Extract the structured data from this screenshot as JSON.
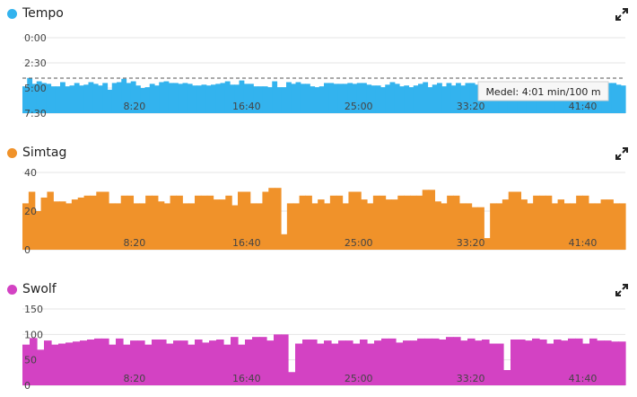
{
  "chart_data": [
    {
      "type": "bar",
      "title": "Tempo",
      "color": "#33b3ee",
      "inverted_y": true,
      "ylim": [
        0,
        450
      ],
      "yticks": [
        "0:00",
        "2:30",
        "5:00",
        "7:30"
      ],
      "ytick_values": [
        0,
        150,
        300,
        450
      ],
      "xticks": [
        "8:20",
        "16:40",
        "25:00",
        "33:20",
        "41:40"
      ],
      "xtick_values": [
        500,
        1000,
        1500,
        2000,
        2500
      ],
      "xlim": [
        0,
        2690
      ],
      "average_value": 241,
      "tooltip": "Medel: 4:01 min/100 m",
      "values": [
        290,
        240,
        275,
        260,
        270,
        275,
        290,
        290,
        265,
        290,
        285,
        270,
        285,
        280,
        265,
        275,
        285,
        270,
        310,
        270,
        265,
        245,
        270,
        260,
        285,
        300,
        295,
        275,
        285,
        265,
        260,
        270,
        270,
        275,
        270,
        275,
        285,
        285,
        280,
        285,
        280,
        275,
        270,
        260,
        280,
        280,
        255,
        275,
        275,
        290,
        290,
        290,
        295,
        260,
        295,
        295,
        265,
        275,
        265,
        275,
        275,
        290,
        295,
        290,
        270,
        270,
        275,
        275,
        275,
        270,
        275,
        270,
        270,
        280,
        285,
        285,
        295,
        280,
        265,
        275,
        290,
        285,
        295,
        285,
        275,
        265,
        295,
        280,
        270,
        290,
        270,
        285,
        270,
        285,
        270,
        270,
        280,
        285,
        280,
        275,
        290,
        290,
        290,
        290,
        280,
        280,
        290,
        285,
        285,
        275,
        290,
        290,
        265,
        275,
        275,
        265,
        275,
        295,
        280,
        275,
        285,
        290,
        270,
        285,
        270,
        270,
        280,
        285
      ]
    },
    {
      "type": "bar",
      "title": "Simtag",
      "color": "#f0922a",
      "ylim": [
        0,
        40
      ],
      "yticks": [
        "0",
        "20",
        "40"
      ],
      "ytick_values": [
        0,
        20,
        40
      ],
      "xticks": [
        "8:20",
        "16:40",
        "25:00",
        "33:20",
        "41:40"
      ],
      "xtick_values": [
        500,
        1000,
        1500,
        2000,
        2500
      ],
      "xlim": [
        0,
        2690
      ],
      "values": [
        24,
        30,
        20,
        27,
        30,
        25,
        25,
        24,
        26,
        27,
        28,
        28,
        30,
        30,
        24,
        24,
        28,
        28,
        24,
        24,
        28,
        28,
        25,
        24,
        28,
        28,
        24,
        24,
        28,
        28,
        28,
        26,
        26,
        28,
        23,
        30,
        30,
        24,
        24,
        30,
        32,
        32,
        8,
        24,
        24,
        28,
        28,
        24,
        26,
        24,
        28,
        28,
        24,
        30,
        30,
        26,
        24,
        28,
        28,
        26,
        26,
        28,
        28,
        28,
        28,
        31,
        31,
        25,
        24,
        28,
        28,
        24,
        24,
        22,
        22,
        6,
        24,
        24,
        26,
        30,
        30,
        26,
        24,
        28,
        28,
        28,
        24,
        26,
        24,
        24,
        28,
        28,
        24,
        24,
        26,
        26,
        24,
        24
      ]
    },
    {
      "type": "bar",
      "title": "Swolf",
      "color": "#d342c3",
      "ylim": [
        0,
        150
      ],
      "yticks": [
        "0",
        "50",
        "100",
        "150"
      ],
      "ytick_values": [
        0,
        50,
        100,
        150
      ],
      "xticks": [
        "8:20",
        "16:40",
        "25:00",
        "33:20",
        "41:40"
      ],
      "xtick_values": [
        500,
        1000,
        1500,
        2000,
        2500
      ],
      "xlim": [
        0,
        2690
      ],
      "values": [
        80,
        93,
        70,
        88,
        80,
        82,
        84,
        86,
        88,
        90,
        92,
        92,
        80,
        92,
        80,
        88,
        88,
        80,
        90,
        90,
        82,
        88,
        88,
        80,
        90,
        84,
        88,
        90,
        80,
        95,
        80,
        90,
        95,
        95,
        88,
        100,
        100,
        26,
        82,
        90,
        90,
        82,
        88,
        82,
        88,
        88,
        82,
        90,
        82,
        88,
        92,
        92,
        84,
        88,
        88,
        92,
        92,
        92,
        90,
        95,
        95,
        88,
        92,
        88,
        90,
        82,
        82,
        30,
        90,
        90,
        88,
        92,
        90,
        82,
        90,
        88,
        92,
        92,
        82,
        92,
        88,
        88,
        86,
        86
      ]
    }
  ]
}
